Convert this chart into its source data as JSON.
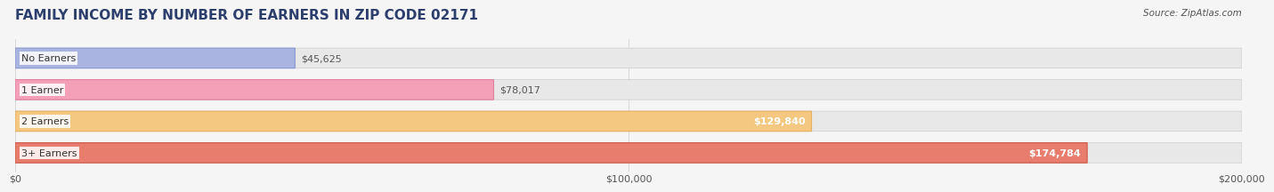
{
  "title": "FAMILY INCOME BY NUMBER OF EARNERS IN ZIP CODE 02171",
  "source": "Source: ZipAtlas.com",
  "categories": [
    "No Earners",
    "1 Earner",
    "2 Earners",
    "3+ Earners"
  ],
  "values": [
    45625,
    78017,
    129840,
    174784
  ],
  "labels": [
    "$45,625",
    "$78,017",
    "$129,840",
    "$174,784"
  ],
  "bar_colors": [
    "#aab4e0",
    "#f4a0b8",
    "#f5c882",
    "#e87d6e"
  ],
  "bar_edge_colors": [
    "#8898d0",
    "#e080a0",
    "#e8b060",
    "#d05848"
  ],
  "label_colors": [
    "#555555",
    "#555555",
    "#ffffff",
    "#ffffff"
  ],
  "xlim": [
    0,
    200000
  ],
  "xticks": [
    0,
    100000,
    200000
  ],
  "xticklabels": [
    "$0",
    "$100,000",
    "$200,000"
  ],
  "title_fontsize": 11,
  "title_color": "#2c3e6b",
  "bar_height": 0.62,
  "background_color": "#f5f5f5",
  "bar_bg_color": "#e8e8e8"
}
